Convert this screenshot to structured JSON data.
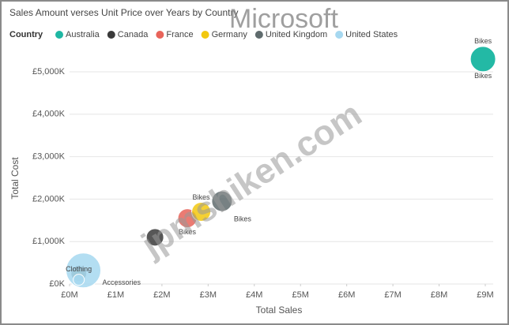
{
  "chart_data": {
    "type": "scatter",
    "title": "Sales Amount verses Unit Price over Years by Country",
    "legend_title": "Country",
    "x_label": "Total Sales",
    "y_label": "Total Cost",
    "annotations": [
      "Microsoft",
      "jpmshiken.com"
    ],
    "xlim": [
      0,
      9
    ],
    "ylim": [
      0,
      5000
    ],
    "xticks": [
      {
        "value": 0,
        "label": "£0M"
      },
      {
        "value": 1,
        "label": "£1M"
      },
      {
        "value": 2,
        "label": "£2M"
      },
      {
        "value": 3,
        "label": "£3M"
      },
      {
        "value": 4,
        "label": "£4M"
      },
      {
        "value": 5,
        "label": "£5M"
      },
      {
        "value": 6,
        "label": "£6M"
      },
      {
        "value": 7,
        "label": "£7M"
      },
      {
        "value": 8,
        "label": "£8M"
      },
      {
        "value": 9,
        "label": "£9M"
      }
    ],
    "yticks": [
      {
        "value": 0,
        "label": "£0K"
      },
      {
        "value": 1000,
        "label": "£1,000K"
      },
      {
        "value": 2000,
        "label": "£2,000K"
      },
      {
        "value": 3000,
        "label": "£3,000K"
      },
      {
        "value": 4000,
        "label": "£4,000K"
      },
      {
        "value": 5000,
        "label": "£5,000K"
      }
    ],
    "series": [
      {
        "name": "Australia",
        "color": "#1fb7a3",
        "x": [
          8.95,
          8.95,
          0.15
        ],
        "values": [
          5300,
          5300,
          180
        ],
        "sizes": [
          16,
          16,
          6
        ],
        "labels": [
          "Bikes",
          "Bikes",
          null
        ]
      },
      {
        "name": "Canada",
        "color": "#3a3a3a",
        "x": [
          1.85,
          0.2
        ],
        "values": [
          1100,
          150
        ],
        "sizes": [
          11,
          6
        ],
        "labels": [
          null,
          null
        ]
      },
      {
        "name": "France",
        "color": "#e8645a",
        "x": [
          2.55,
          0.15
        ],
        "values": [
          1550,
          120
        ],
        "sizes": [
          12,
          5
        ],
        "labels": [
          "Bikes",
          null
        ]
      },
      {
        "name": "Germany",
        "color": "#f2c80f",
        "x": [
          2.85,
          0.2
        ],
        "values": [
          1700,
          200
        ],
        "sizes": [
          12,
          8
        ],
        "labels": [
          "Bikes",
          null
        ]
      },
      {
        "name": "United Kingdom",
        "color": "#5f6b6d",
        "x": [
          3.3,
          0.2
        ],
        "values": [
          1950,
          250
        ],
        "sizes": [
          13,
          10
        ],
        "labels": [
          "Bikes",
          null
        ]
      },
      {
        "name": "United States",
        "color": "#a6d8f0",
        "x": [
          0.3,
          0.2
        ],
        "values": [
          320,
          100
        ],
        "sizes": [
          22,
          7
        ],
        "labels": [
          "Accessories",
          "Clothing"
        ]
      }
    ]
  }
}
